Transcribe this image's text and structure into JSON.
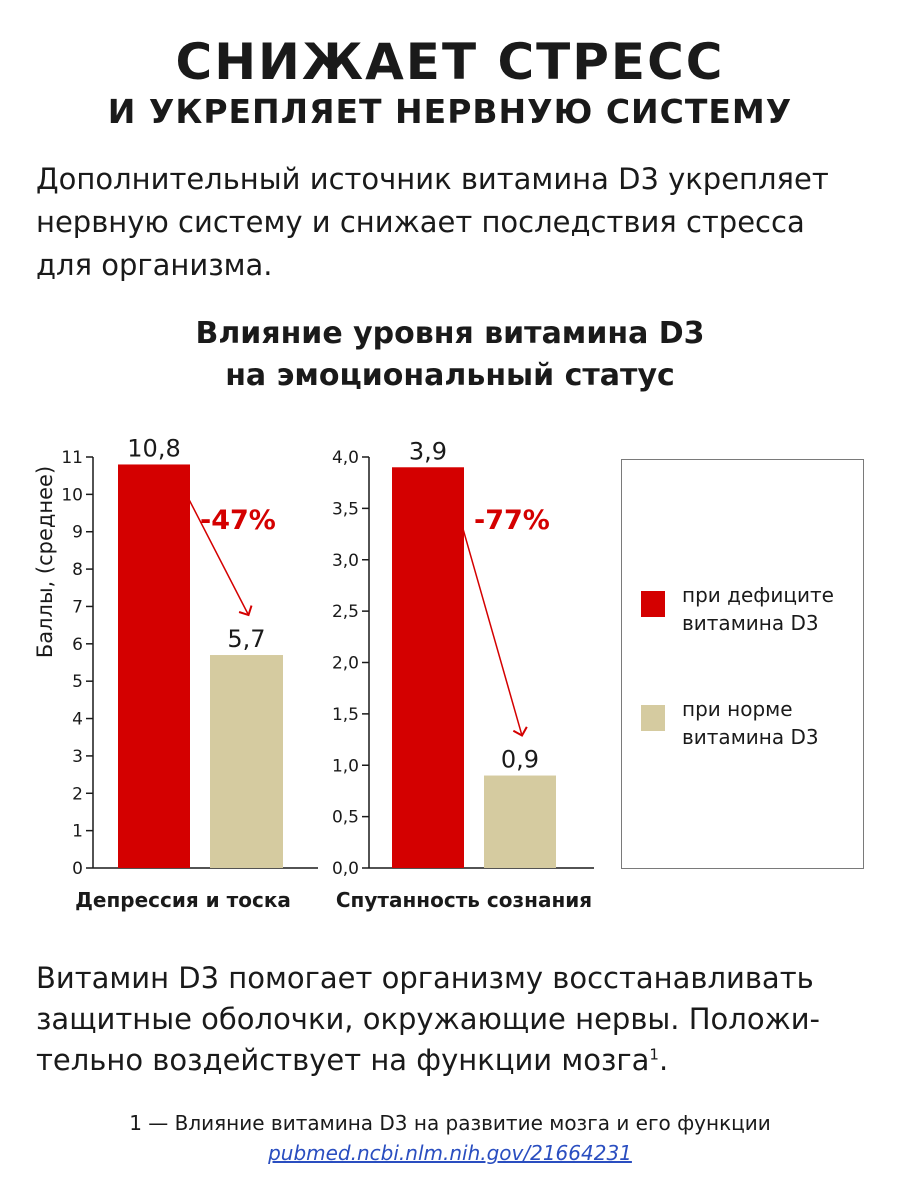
{
  "header": {
    "title_line1": "СНИЖАЕТ СТРЕСС",
    "title_line2": "И УКРЕПЛЯЕТ НЕРВНУЮ СИСТЕМУ"
  },
  "intro": {
    "lines": [
      "Дополнительный источник витамина D3 укрепляет",
      "нервную систему и снижает последствия стресса",
      "для организма."
    ]
  },
  "colors": {
    "deficit": "#d40000",
    "normal": "#d5cba0",
    "axis": "#1a1a1a"
  },
  "chart_data": [
    {
      "type": "bar",
      "title": [
        "Влияние уровня витамина D3",
        "на эмоциональный статус"
      ],
      "ylabel": "Баллы, (среднее)",
      "xlabel": "Депрессия и тоска",
      "categories": [
        "при дефиците витамина D3",
        "при норме витамина D3"
      ],
      "values": [
        10.8,
        5.7
      ],
      "value_labels": [
        "10,8",
        "5,7"
      ],
      "ylim": [
        0,
        11
      ],
      "yticks": [
        "0",
        "1",
        "2",
        "3",
        "4",
        "5",
        "6",
        "7",
        "8",
        "9",
        "10",
        "11"
      ],
      "annotation": "-47%",
      "grid": false,
      "legend": "right"
    },
    {
      "type": "bar",
      "xlabel": "Спутанность сознания",
      "categories": [
        "при дефиците витамина D3",
        "при норме витамина D3"
      ],
      "values": [
        3.9,
        0.9
      ],
      "value_labels": [
        "3,9",
        "0,9"
      ],
      "ylim": [
        0,
        4
      ],
      "yticks": [
        "0,0",
        "0,5",
        "1,0",
        "1,5",
        "2,0",
        "2,5",
        "3,0",
        "3,5",
        "4,0"
      ],
      "annotation": "-77%",
      "grid": false
    }
  ],
  "legend": {
    "items": [
      {
        "line1": "при дефиците",
        "line2": "витамина D3"
      },
      {
        "line1": "при норме",
        "line2": "витамина D3"
      }
    ]
  },
  "bottom": {
    "lines": [
      "Витамин D3 помогает организму восстанавливать",
      "защитные оболочки, окружающие нервы. Положи-",
      "тельно воздействует на функции мозга"
    ],
    "footnote_mark": "1",
    "period": "."
  },
  "footnote": {
    "text": "1 — Влияние витамина D3 на развитие мозга и его функции",
    "link": "pubmed.ncbi.nlm.nih.gov/21664231"
  }
}
